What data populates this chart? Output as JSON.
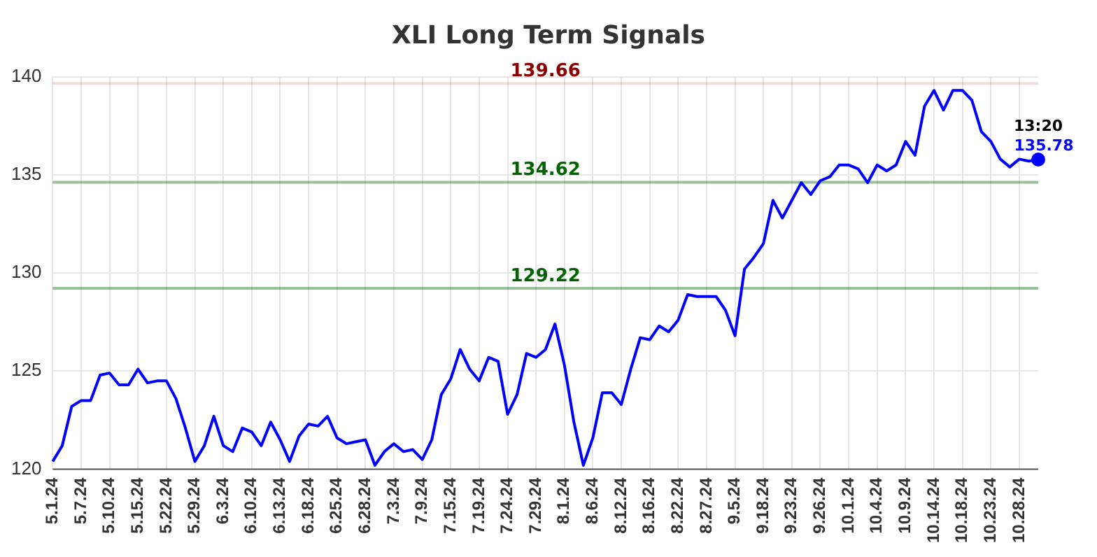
{
  "chart_data": {
    "type": "line",
    "title": "XLI Long Term Signals",
    "categories": [
      "5.1.24",
      null,
      null,
      "5.7.24",
      null,
      null,
      "5.10.24",
      null,
      null,
      "5.15.24",
      null,
      null,
      "5.22.24",
      null,
      null,
      "5.29.24",
      null,
      null,
      "6.3.24",
      null,
      null,
      "6.10.24",
      null,
      null,
      "6.13.24",
      null,
      null,
      "6.18.24",
      null,
      null,
      "6.25.24",
      null,
      null,
      "6.28.24",
      null,
      null,
      "7.3.24",
      null,
      null,
      "7.9.24",
      null,
      null,
      "7.15.24",
      null,
      null,
      "7.19.24",
      null,
      null,
      "7.24.24",
      null,
      null,
      "7.29.24",
      null,
      null,
      "8.1.24",
      null,
      null,
      "8.6.24",
      null,
      null,
      "8.12.24",
      null,
      null,
      "8.16.24",
      null,
      null,
      "8.22.24",
      null,
      null,
      "8.27.24",
      null,
      null,
      "9.5.24",
      null,
      null,
      "9.18.24",
      null,
      null,
      "9.23.24",
      null,
      null,
      "9.26.24",
      null,
      null,
      "10.1.24",
      null,
      null,
      "10.4.24",
      null,
      null,
      "10.9.24",
      null,
      null,
      "10.14.24",
      null,
      null,
      "10.18.24",
      null,
      null,
      "10.23.24",
      null,
      null,
      "10.28.24",
      null,
      null
    ],
    "series": [
      {
        "color": "#0000ff",
        "values": [
          120.4,
          121.2,
          123.2,
          123.5,
          123.5,
          124.8,
          124.9,
          124.3,
          124.3,
          125.1,
          124.4,
          124.5,
          124.5,
          123.6,
          122.1,
          120.4,
          121.2,
          122.7,
          121.2,
          120.9,
          122.1,
          121.9,
          121.2,
          122.4,
          121.5,
          120.4,
          121.7,
          122.3,
          122.2,
          122.7,
          121.6,
          121.3,
          121.4,
          121.5,
          120.2,
          120.9,
          121.3,
          120.9,
          121.0,
          120.5,
          121.5,
          123.8,
          124.6,
          126.1,
          125.1,
          124.5,
          125.7,
          125.5,
          122.8,
          123.8,
          125.9,
          125.7,
          126.1,
          127.4,
          125.3,
          122.4,
          120.2,
          121.6,
          123.9,
          123.9,
          123.3,
          125.1,
          126.7,
          126.6,
          127.3,
          127.0,
          127.6,
          128.9,
          128.8,
          128.8,
          128.8,
          128.1,
          126.8,
          130.2,
          130.8,
          131.5,
          133.7,
          132.8,
          133.7,
          134.6,
          134.0,
          134.7,
          134.9,
          135.5,
          135.5,
          135.3,
          134.6,
          135.5,
          135.2,
          135.5,
          136.7,
          136.0,
          138.5,
          139.3,
          138.3,
          139.3,
          139.3,
          138.8,
          137.2,
          136.7,
          135.8,
          135.4,
          135.8,
          135.7,
          135.78
        ],
        "value_labels": [
          null,
          null,
          null,
          null,
          null,
          null,
          null,
          null,
          null,
          null,
          null,
          null,
          null,
          null,
          null,
          null,
          null,
          null,
          null,
          null,
          null,
          null,
          null,
          null,
          null,
          null,
          null,
          null,
          null,
          null,
          null,
          null,
          null,
          null,
          null,
          null,
          null,
          null,
          null,
          null,
          null,
          null,
          null,
          null,
          null,
          null,
          null,
          null,
          null,
          null,
          null,
          null,
          null,
          null,
          null,
          null,
          null,
          null,
          null,
          null,
          null,
          null,
          null,
          null,
          null,
          null,
          null,
          null,
          null,
          null,
          null,
          null,
          null,
          null,
          null,
          null,
          null,
          null,
          null,
          null,
          null,
          null,
          null,
          null,
          null,
          null,
          null,
          null,
          null,
          null,
          null,
          null,
          null,
          null,
          null,
          null,
          null,
          null,
          null,
          null,
          null,
          null,
          null,
          null,
          "135.78"
        ]
      }
    ],
    "ylim": [
      120,
      140
    ],
    "yticks": [
      120,
      125,
      130,
      135,
      140
    ],
    "ref_lines": [
      {
        "axis": "y",
        "value": 139.66,
        "label": "139.66",
        "color": "#8b0000"
      },
      {
        "axis": "y",
        "value": 134.62,
        "label": "134.62",
        "color": "#006400"
      },
      {
        "axis": "y",
        "value": 129.22,
        "label": "129.22",
        "color": "#006400"
      }
    ],
    "annotations": [
      {
        "text": "13:20",
        "y": 135.78
      }
    ],
    "grid": true,
    "legend": false,
    "marker": "none",
    "line_style": "solid"
  }
}
